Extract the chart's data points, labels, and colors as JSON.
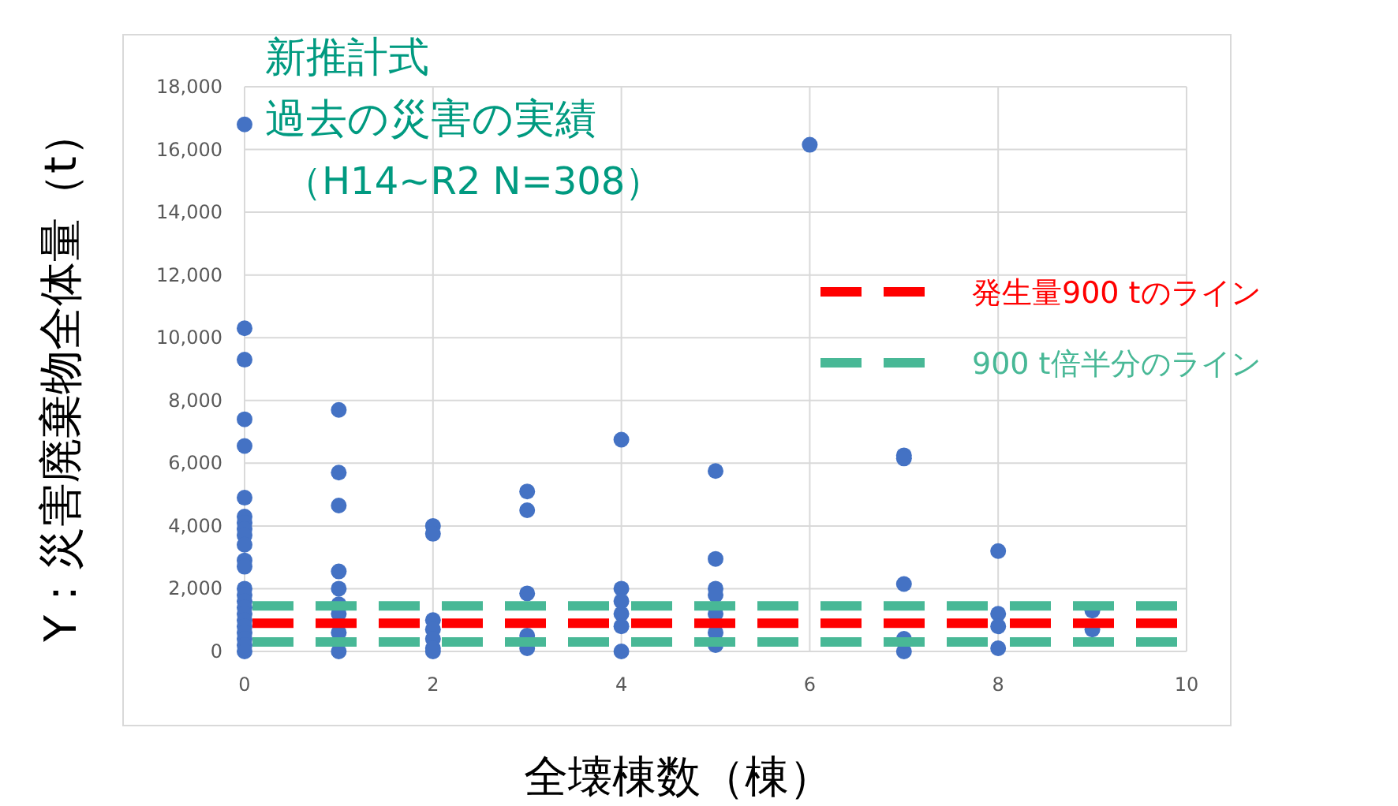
{
  "chart_data": {
    "type": "scatter",
    "title": "新推計式",
    "subtitle": "過去の災害の実績",
    "annotations": [
      "（H14~R2 N=308）"
    ],
    "xlabel": "全壊棟数（棟）",
    "ylabel": "Y：災害廃棄物全体量（t）",
    "xlim": [
      0,
      10
    ],
    "xticks": [
      0,
      2,
      4,
      6,
      8,
      10
    ],
    "ylim": [
      0,
      18000
    ],
    "yticks": [
      {
        "value": 0,
        "label": "0"
      },
      {
        "value": 2000,
        "label": "2,000"
      },
      {
        "value": 4000,
        "label": "4,000"
      },
      {
        "value": 6000,
        "label": "6,000"
      },
      {
        "value": 8000,
        "label": "8,000"
      },
      {
        "value": 10000,
        "label": "10,000"
      },
      {
        "value": 12000,
        "label": "12,000"
      },
      {
        "value": 14000,
        "label": "14,000"
      },
      {
        "value": 16000,
        "label": "16,000"
      },
      {
        "value": 18000,
        "label": "18,000"
      }
    ],
    "grid": true,
    "legend": "right",
    "marker": "circle",
    "series": [
      {
        "color": "#4472c4",
        "x": [
          0,
          0,
          0,
          0,
          0,
          0,
          0,
          0,
          0,
          0,
          0,
          0,
          0,
          0,
          0,
          0,
          0,
          0,
          0,
          0,
          0,
          0,
          0,
          0,
          1,
          1,
          1,
          1,
          1,
          1,
          1,
          1,
          1,
          2,
          2,
          2,
          2,
          2,
          2,
          2,
          3,
          3,
          3,
          3,
          3,
          4,
          4,
          4,
          4,
          4,
          4,
          5,
          5,
          5,
          5,
          5,
          5,
          5,
          6,
          7,
          7,
          7,
          7,
          7,
          8,
          8,
          8,
          8,
          9,
          9
        ],
        "values": [
          16800,
          10300,
          9300,
          7400,
          6550,
          4900,
          4300,
          4100,
          3900,
          3700,
          3400,
          2900,
          2700,
          2000,
          1800,
          1600,
          1400,
          1200,
          1000,
          800,
          600,
          400,
          200,
          0,
          7700,
          5700,
          4650,
          2550,
          2000,
          1500,
          1200,
          600,
          0,
          4000,
          3750,
          1000,
          700,
          400,
          100,
          0,
          5100,
          4500,
          1850,
          500,
          100,
          6750,
          2000,
          1600,
          1200,
          800,
          0,
          5750,
          2950,
          2000,
          1800,
          1200,
          600,
          200,
          16150,
          6250,
          6150,
          2150,
          400,
          0,
          3200,
          1200,
          800,
          100,
          1300,
          700
        ]
      }
    ],
    "ref_lines": [
      {
        "axis": "y",
        "value": 900,
        "label": "発生量900 tのライン",
        "color": "#ff0000",
        "line_style": "dashed"
      },
      {
        "axis": "y",
        "value": 1450,
        "label": "900 t倍半分のライン",
        "color": "#48b896",
        "line_style": "dashed"
      },
      {
        "axis": "y",
        "value": 300,
        "label": null,
        "color": "#48b896",
        "line_style": "dashed"
      }
    ]
  }
}
